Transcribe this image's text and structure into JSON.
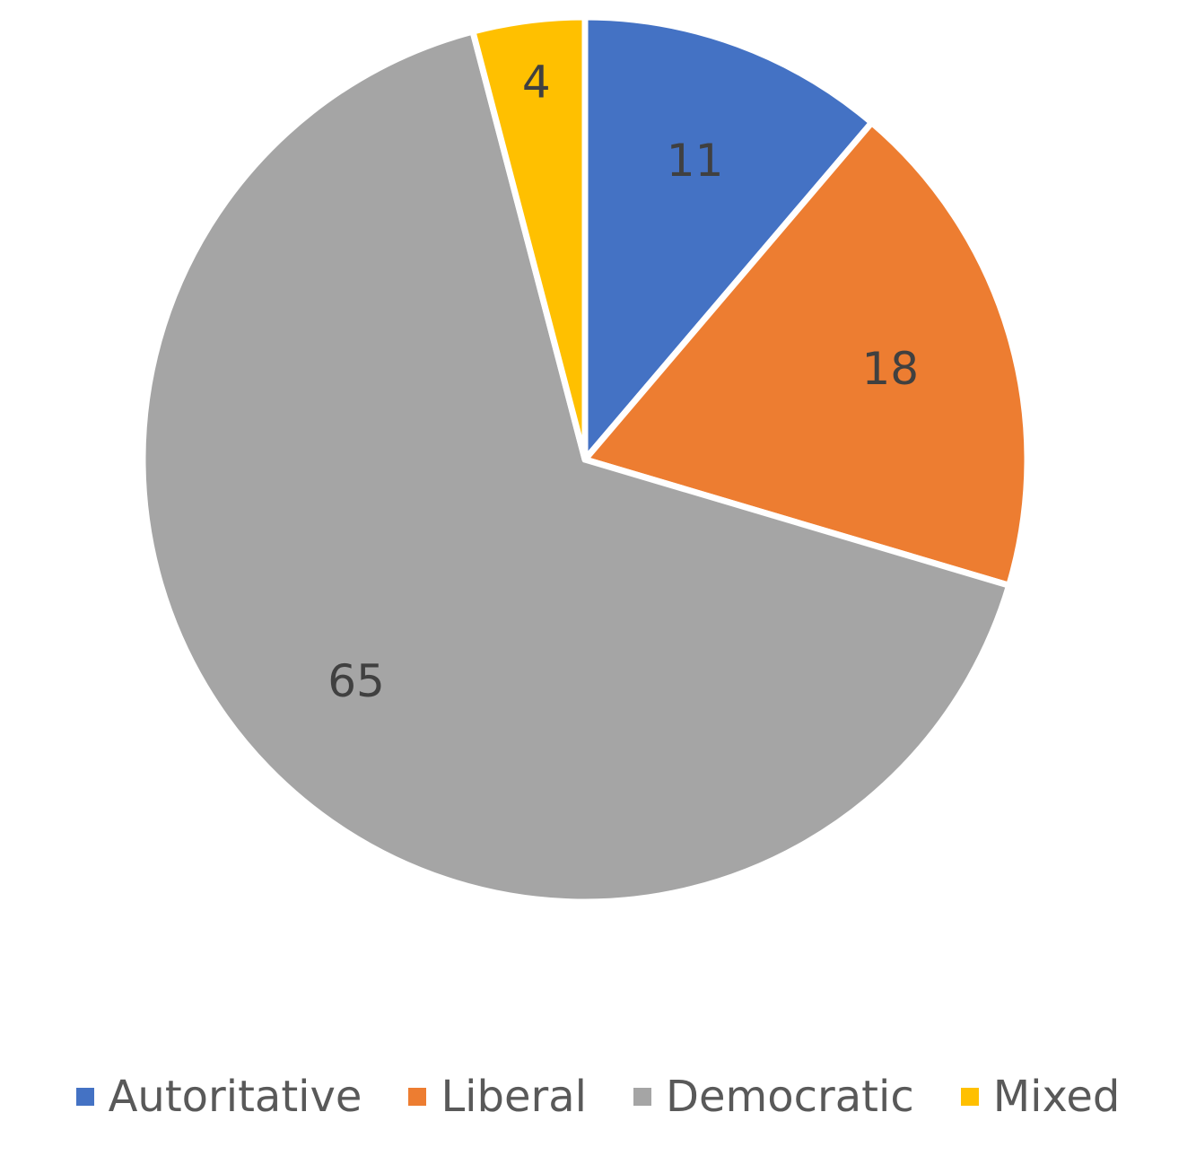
{
  "chart_data": {
    "type": "pie",
    "categories": [
      "Autoritative",
      "Liberal",
      "Democratic",
      "Mixed"
    ],
    "values": [
      11,
      18,
      65,
      4
    ],
    "colors": [
      "#4472c4",
      "#ed7d31",
      "#a5a5a5",
      "#ffc000"
    ],
    "start_angle_deg": 0,
    "direction": "clockwise",
    "legend_position": "bottom"
  }
}
